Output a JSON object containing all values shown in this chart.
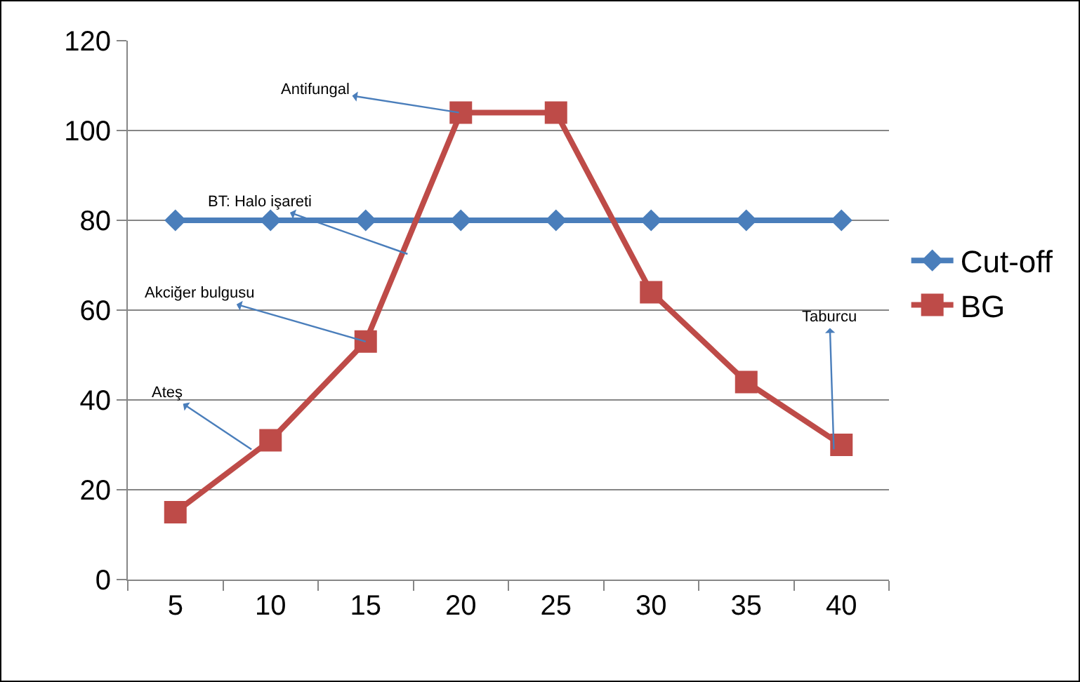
{
  "chart_data": {
    "type": "line",
    "x": [
      5,
      10,
      15,
      20,
      25,
      30,
      35,
      40
    ],
    "xlim": [
      2.5,
      42.5
    ],
    "xticks": [
      5,
      10,
      15,
      20,
      25,
      30,
      35,
      40
    ],
    "ylim": [
      0,
      120
    ],
    "yticks": [
      0,
      20,
      40,
      60,
      80,
      100,
      120
    ],
    "grid": "y",
    "legend": "right",
    "series": [
      {
        "name": "Cut-off",
        "color": "#4a7ebb",
        "marker": "diamond",
        "values": [
          80,
          80,
          80,
          80,
          80,
          80,
          80,
          80
        ]
      },
      {
        "name": "BG",
        "color": "#be4b48",
        "marker": "square",
        "values": [
          15,
          31,
          53,
          104,
          104,
          64,
          44,
          30
        ]
      }
    ],
    "annotations": [
      {
        "text": "Ateş",
        "x": 9,
        "y": 29
      },
      {
        "text": "Akciğer bulgusu",
        "x": 15,
        "y": 53
      },
      {
        "text": "BT: Halo işareti",
        "x": 17.2,
        "y": 72.5
      },
      {
        "text": "Antifungal",
        "x": 19.9,
        "y": 104
      },
      {
        "text": "Taburcu",
        "x": 39.6,
        "y": 29
      }
    ]
  }
}
